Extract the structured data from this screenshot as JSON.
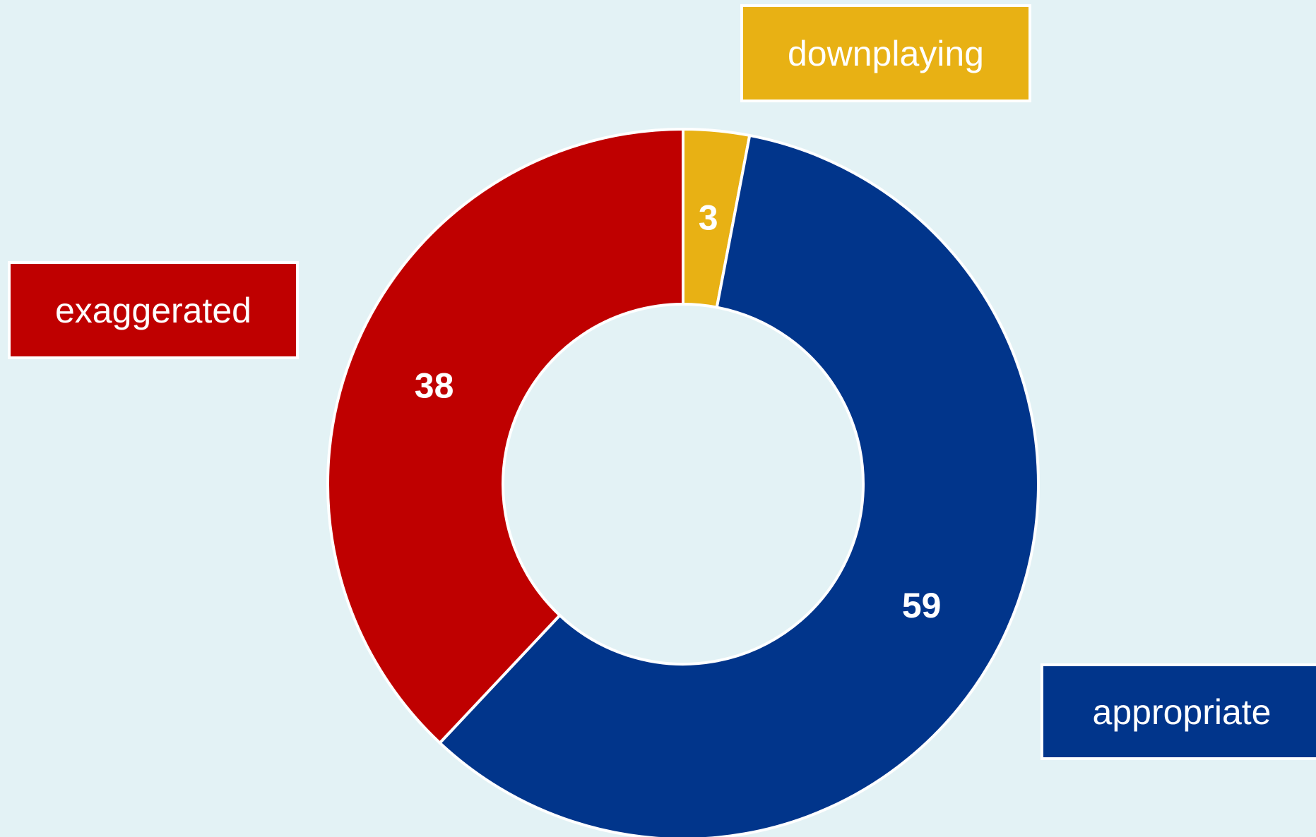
{
  "chart_data": {
    "type": "pie",
    "donut": true,
    "title": "",
    "categories": [
      "downplaying",
      "appropriate",
      "exaggerated"
    ],
    "values": [
      3,
      59,
      38
    ],
    "colors": [
      "#e8b114",
      "#01358b",
      "#bf0000"
    ],
    "data_labels": [
      "3",
      "59",
      "38"
    ],
    "legend": {
      "placement": "callout-boxes",
      "entries": [
        "downplaying",
        "exaggerated",
        "appropriate"
      ]
    }
  }
}
